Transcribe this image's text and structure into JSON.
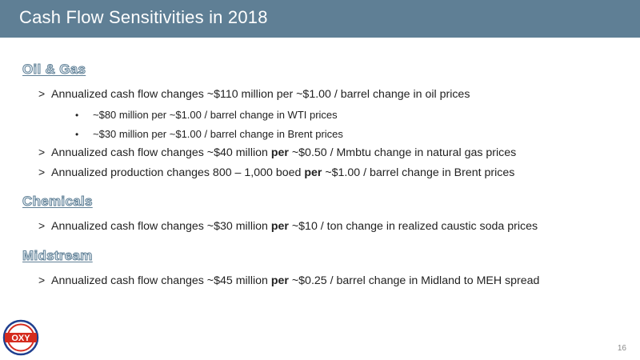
{
  "slide": {
    "title": "Cash Flow Sensitivities in 2018",
    "page_number": "16"
  },
  "logo": {
    "text": "OXY",
    "icon": "oxy-logo-icon"
  },
  "colors": {
    "title_bar": "#5f7f95",
    "heading_outline": "#5f7f95",
    "logo_red": "#d52b1e",
    "logo_blue": "#1f3f8f"
  },
  "sections": {
    "oil_gas": {
      "heading": "Oil & Gas",
      "b1": {
        "marker": ">",
        "text": "Annualized cash flow changes ~$110 million per ~$1.00 / barrel change in oil prices"
      },
      "s1": {
        "marker": "•",
        "text": "~$80 million per ~$1.00 / barrel change in WTI prices"
      },
      "s2": {
        "marker": "•",
        "text": "~$30 million per ~$1.00 / barrel change in Brent prices"
      },
      "b2": {
        "marker": ">",
        "pre": "Annualized cash flow changes ~$40 million ",
        "bold": "per",
        "post": " ~$0.50 / Mmbtu change in natural gas prices"
      },
      "b3": {
        "marker": ">",
        "pre": "Annualized production changes 800 – 1,000 boed ",
        "bold": "per",
        "post": " ~$1.00 / barrel change in Brent prices"
      }
    },
    "chemicals": {
      "heading": "Chemicals",
      "b1": {
        "marker": ">",
        "pre": "Annualized cash flow changes ~$30 million ",
        "bold": "per",
        "post": " ~$10 / ton change in realized caustic soda prices"
      }
    },
    "midstream": {
      "heading": "Midstream",
      "b1": {
        "marker": ">",
        "pre": "Annualized cash flow changes ~$45 million ",
        "bold": "per",
        "post": " ~$0.25 / barrel change in Midland to MEH spread"
      }
    }
  }
}
